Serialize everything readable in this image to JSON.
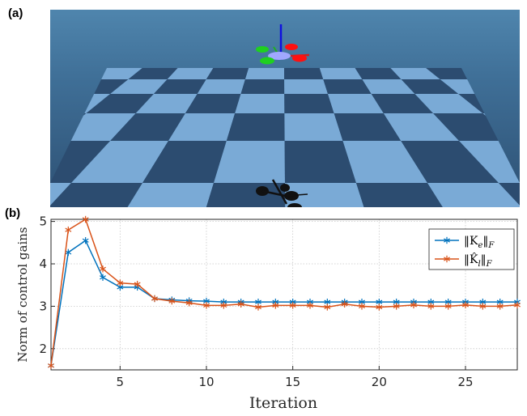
{
  "panels": {
    "a_label": "(a)",
    "b_label": "(b)"
  },
  "scene": {
    "description_icon": "quadrotor-simulation-scene"
  },
  "chart_data": {
    "type": "line",
    "xlabel": "Iteration",
    "ylabel": "Norm of control gains",
    "xlim": [
      1,
      28
    ],
    "ylim": [
      1.5,
      5.05
    ],
    "xticks": [
      5,
      10,
      15,
      20,
      25
    ],
    "yticks": [
      2,
      3,
      4,
      5
    ],
    "grid": true,
    "legend_position": "top-right",
    "x": [
      1,
      2,
      3,
      4,
      5,
      6,
      7,
      8,
      9,
      10,
      11,
      12,
      13,
      14,
      15,
      16,
      17,
      18,
      19,
      20,
      21,
      22,
      23,
      24,
      25,
      26,
      27,
      28
    ],
    "series": [
      {
        "name_main": "‖K",
        "name_sub": "e",
        "name_tail": "‖",
        "name_norm_sub": "F",
        "hat": false,
        "color": "#0072BD",
        "values": [
          1.6,
          4.27,
          4.55,
          3.68,
          3.45,
          3.45,
          3.18,
          3.15,
          3.13,
          3.12,
          3.1,
          3.1,
          3.1,
          3.1,
          3.1,
          3.1,
          3.1,
          3.1,
          3.1,
          3.1,
          3.1,
          3.1,
          3.1,
          3.1,
          3.1,
          3.1,
          3.1,
          3.1
        ]
      },
      {
        "name_main": "‖K̂",
        "name_sub": "l",
        "name_tail": "‖",
        "name_norm_sub": "F",
        "hat": true,
        "color": "#D95319",
        "values": [
          1.6,
          4.8,
          5.05,
          3.88,
          3.55,
          3.52,
          3.18,
          3.12,
          3.08,
          3.02,
          3.02,
          3.05,
          2.98,
          3.02,
          3.02,
          3.02,
          2.98,
          3.05,
          3.0,
          2.98,
          3.0,
          3.03,
          3.0,
          3.0,
          3.03,
          3.0,
          3.0,
          3.03
        ]
      }
    ]
  }
}
